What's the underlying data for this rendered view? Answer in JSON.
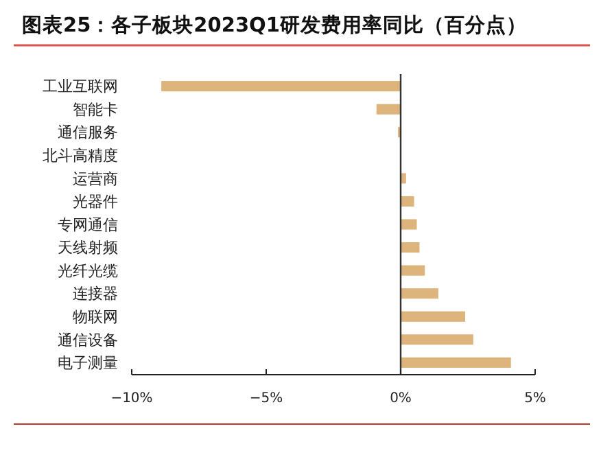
{
  "chart_data": {
    "type": "bar",
    "orientation": "horizontal",
    "title": "图表25：各子板块2023Q1研发费用率同比（百分点）",
    "categories": [
      "工业互联网",
      "智能卡",
      "通信服务",
      "北斗高精度",
      "运营商",
      "光器件",
      "专网通信",
      "天线射频",
      "光纤光缆",
      "连接器",
      "物联网",
      "通信设备",
      "电子测量"
    ],
    "values": [
      -8.9,
      -0.9,
      -0.1,
      0,
      0.2,
      0.5,
      0.6,
      0.7,
      0.9,
      1.4,
      2.4,
      2.7,
      4.1
    ],
    "color": "#dcb47c",
    "xlim": [
      -10,
      5
    ],
    "xticks": [
      {
        "value": -10,
        "label": "−10%"
      },
      {
        "value": -5,
        "label": "−5%"
      },
      {
        "value": 0,
        "label": "0%"
      },
      {
        "value": 5,
        "label": "5%"
      }
    ],
    "tick_labels": "x"
  }
}
